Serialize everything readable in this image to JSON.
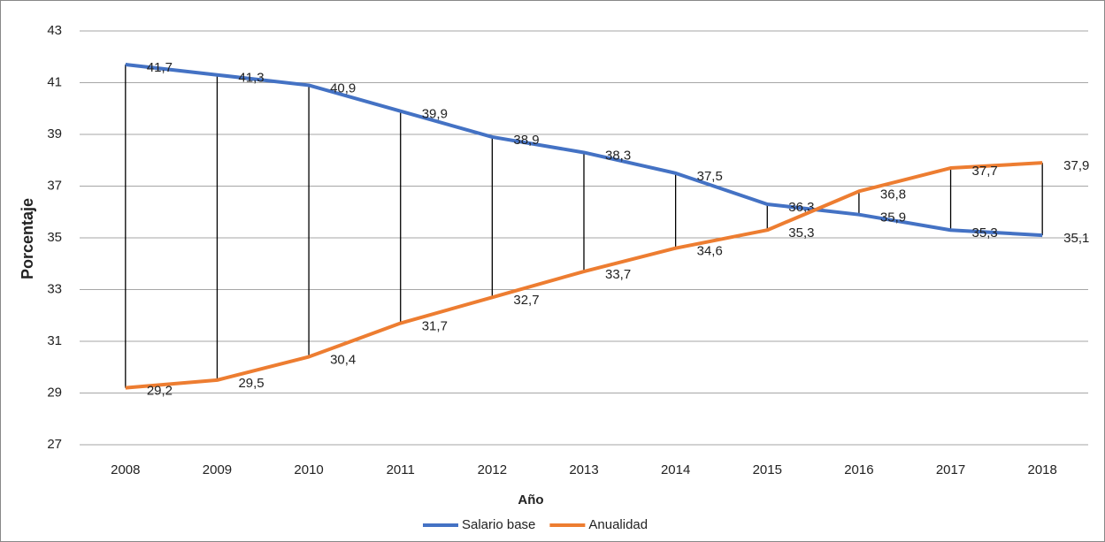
{
  "chart_data": {
    "type": "line",
    "x_label": "Año",
    "y_label": "Porcentaje",
    "categories": [
      "2008",
      "2009",
      "2010",
      "2011",
      "2012",
      "2013",
      "2014",
      "2015",
      "2016",
      "2017",
      "2018"
    ],
    "series": [
      {
        "name": "Salario base",
        "color": "#4472c4",
        "values": [
          41.7,
          41.3,
          40.9,
          39.9,
          38.9,
          38.3,
          37.5,
          36.3,
          35.9,
          35.3,
          35.1
        ],
        "value_labels": [
          "41,7",
          "41,3",
          "40,9",
          "39,9",
          "38,9",
          "38,3",
          "37,5",
          "36,3",
          "35,9",
          "35,3",
          "35,1"
        ]
      },
      {
        "name": "Anualidad",
        "color": "#ed7d31",
        "values": [
          29.2,
          29.5,
          30.4,
          31.7,
          32.7,
          33.7,
          34.6,
          35.3,
          36.8,
          37.7,
          37.9
        ],
        "value_labels": [
          "29,2",
          "29,5",
          "30,4",
          "31,7",
          "32,7",
          "33,7",
          "34,6",
          "35,3",
          "36,8",
          "37,7",
          "37,9"
        ]
      }
    ],
    "ylim": [
      27,
      43
    ],
    "yticks": [
      27,
      29,
      31,
      33,
      35,
      37,
      39,
      41,
      43
    ],
    "grid": true,
    "legend": "bottom"
  }
}
